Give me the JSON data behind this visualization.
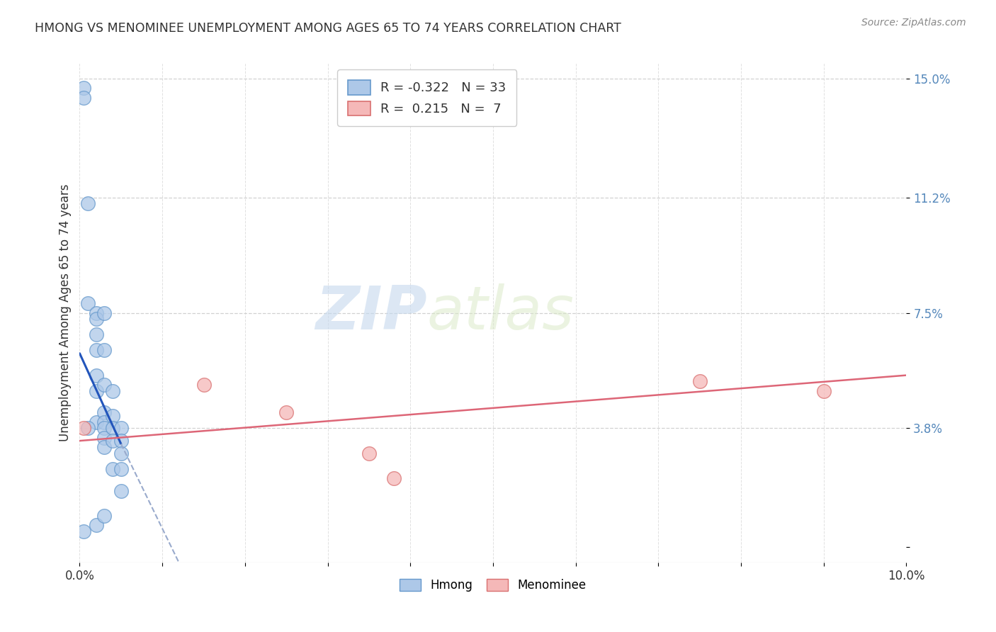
{
  "title": "HMONG VS MENOMINEE UNEMPLOYMENT AMONG AGES 65 TO 74 YEARS CORRELATION CHART",
  "source": "Source: ZipAtlas.com",
  "ylabel": "Unemployment Among Ages 65 to 74 years",
  "xlim": [
    0.0,
    0.1
  ],
  "ylim": [
    -0.005,
    0.155
  ],
  "ytick_positions": [
    0.0,
    0.038,
    0.075,
    0.112,
    0.15
  ],
  "ytick_labels": [
    "",
    "3.8%",
    "7.5%",
    "11.2%",
    "15.0%"
  ],
  "xtick_positions": [
    0.0,
    0.01,
    0.02,
    0.03,
    0.04,
    0.05,
    0.06,
    0.07,
    0.08,
    0.09,
    0.1
  ],
  "xtick_labels_bottom": [
    "0.0%",
    "",
    "",
    "",
    "",
    "",
    "",
    "",
    "",
    "",
    "10.0%"
  ],
  "hmong_color": "#adc8e8",
  "hmong_edge_color": "#6699cc",
  "menominee_color": "#f5b8b8",
  "menominee_edge_color": "#d97070",
  "hmong_line_color": "#2255bb",
  "hmong_line_dash_color": "#99aacc",
  "menominee_line_color": "#dd6677",
  "hmong_R": -0.322,
  "hmong_N": 33,
  "menominee_R": 0.215,
  "menominee_N": 7,
  "hmong_x": [
    0.0005,
    0.0005,
    0.001,
    0.001,
    0.002,
    0.002,
    0.002,
    0.002,
    0.002,
    0.002,
    0.002,
    0.003,
    0.003,
    0.003,
    0.003,
    0.003,
    0.003,
    0.003,
    0.003,
    0.004,
    0.004,
    0.004,
    0.004,
    0.004,
    0.005,
    0.005,
    0.005,
    0.005,
    0.005,
    0.0005,
    0.001,
    0.002,
    0.003
  ],
  "hmong_y": [
    0.147,
    0.144,
    0.11,
    0.078,
    0.075,
    0.073,
    0.068,
    0.063,
    0.055,
    0.05,
    0.04,
    0.075,
    0.063,
    0.052,
    0.043,
    0.04,
    0.038,
    0.035,
    0.032,
    0.05,
    0.042,
    0.038,
    0.034,
    0.025,
    0.038,
    0.034,
    0.03,
    0.025,
    0.018,
    0.005,
    0.038,
    0.007,
    0.01
  ],
  "menominee_x": [
    0.0005,
    0.015,
    0.025,
    0.035,
    0.038,
    0.075,
    0.09
  ],
  "menominee_y": [
    0.038,
    0.052,
    0.043,
    0.03,
    0.022,
    0.053,
    0.05
  ],
  "hmong_trend_x0": 0.0,
  "hmong_trend_y0": 0.062,
  "hmong_trend_x1": 0.005,
  "hmong_trend_y1": 0.033,
  "hmong_trend_dash_x1": 0.012,
  "hmong_trend_dash_y1": -0.005,
  "menominee_trend_x0": 0.0,
  "menominee_trend_y0": 0.034,
  "menominee_trend_x1": 0.1,
  "menominee_trend_y1": 0.055,
  "watermark_zip": "ZIP",
  "watermark_atlas": "atlas",
  "background_color": "#ffffff",
  "grid_color": "#cccccc",
  "title_color": "#333333",
  "yaxis_label_color": "#5588bb",
  "tick_color": "#333333"
}
